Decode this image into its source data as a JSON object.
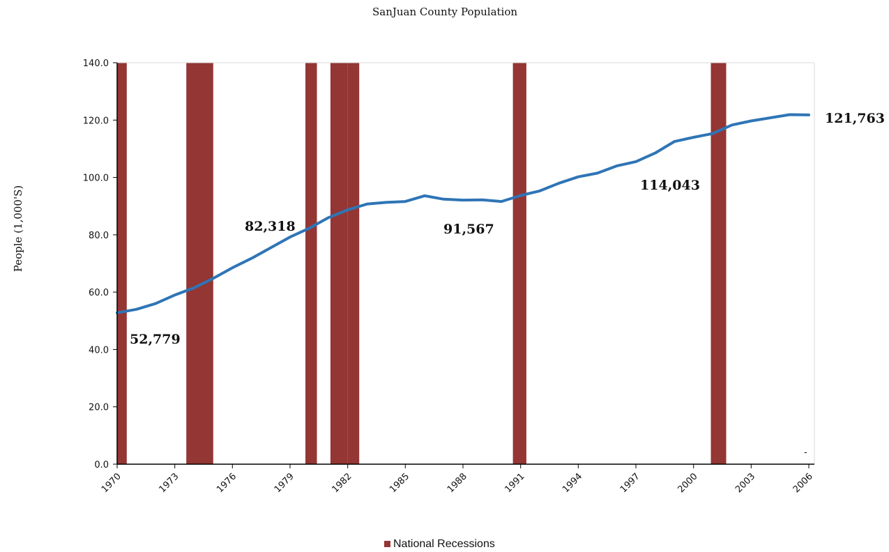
{
  "colors": {
    "population_line": "#2e75b6",
    "recession_bar": "#943634",
    "axis": "#000000"
  },
  "chart_data": {
    "type": "line",
    "title": "SanJuan County Population",
    "ylabel": "People (1,000'S)",
    "xlabel": "",
    "ylim": [
      0,
      140
    ],
    "xlim": [
      1970,
      2006
    ],
    "y_ticks": [
      "0.0",
      "20.0",
      "40.0",
      "60.0",
      "80.0",
      "100.0",
      "120.0",
      "140.0"
    ],
    "x_ticks": [
      "1970",
      "1973",
      "1976",
      "1979",
      "1982",
      "1985",
      "1988",
      "1991",
      "1994",
      "1997",
      "2000",
      "2003",
      "2006"
    ],
    "grid": false,
    "legend": {
      "position": "bottom-center",
      "entries": [
        "National Recessions"
      ]
    },
    "series": [
      {
        "kind": "line",
        "x": [
          1970,
          1971,
          1972,
          1973,
          1974,
          1975,
          1976,
          1977,
          1978,
          1979,
          1980,
          1981,
          1982,
          1983,
          1984,
          1985,
          1986,
          1987,
          1988,
          1989,
          1990,
          1991,
          1992,
          1993,
          1994,
          1995,
          1996,
          1997,
          1998,
          1999,
          2000,
          2001,
          2002,
          2003,
          2004,
          2005,
          2006
        ],
        "values": [
          52.8,
          54.0,
          56.0,
          59.0,
          61.5,
          64.8,
          68.5,
          71.8,
          75.5,
          79.2,
          82.3,
          86.0,
          88.7,
          90.7,
          91.3,
          91.6,
          93.6,
          92.4,
          92.1,
          92.2,
          91.6,
          93.7,
          95.3,
          98.0,
          100.2,
          101.5,
          104.0,
          105.5,
          108.5,
          112.5,
          114.0,
          115.3,
          118.3,
          119.7,
          120.8,
          121.9,
          121.8
        ]
      },
      {
        "name": "National Recessions",
        "kind": "bar",
        "periods": [
          [
            1970.0,
            1970.5
          ],
          [
            1973.6,
            1975.0
          ],
          [
            1979.8,
            1980.4
          ],
          [
            1981.1,
            1982.0
          ],
          [
            1982.0,
            1982.6
          ],
          [
            1990.6,
            1991.3
          ],
          [
            2000.9,
            2001.7
          ]
        ],
        "value": 140
      }
    ],
    "annotations": [
      {
        "text": "52,779"
      },
      {
        "text": "82,318"
      },
      {
        "text": "91,567"
      },
      {
        "text": "114,043"
      },
      {
        "text": "121,763"
      },
      {
        "text": "-"
      }
    ]
  }
}
